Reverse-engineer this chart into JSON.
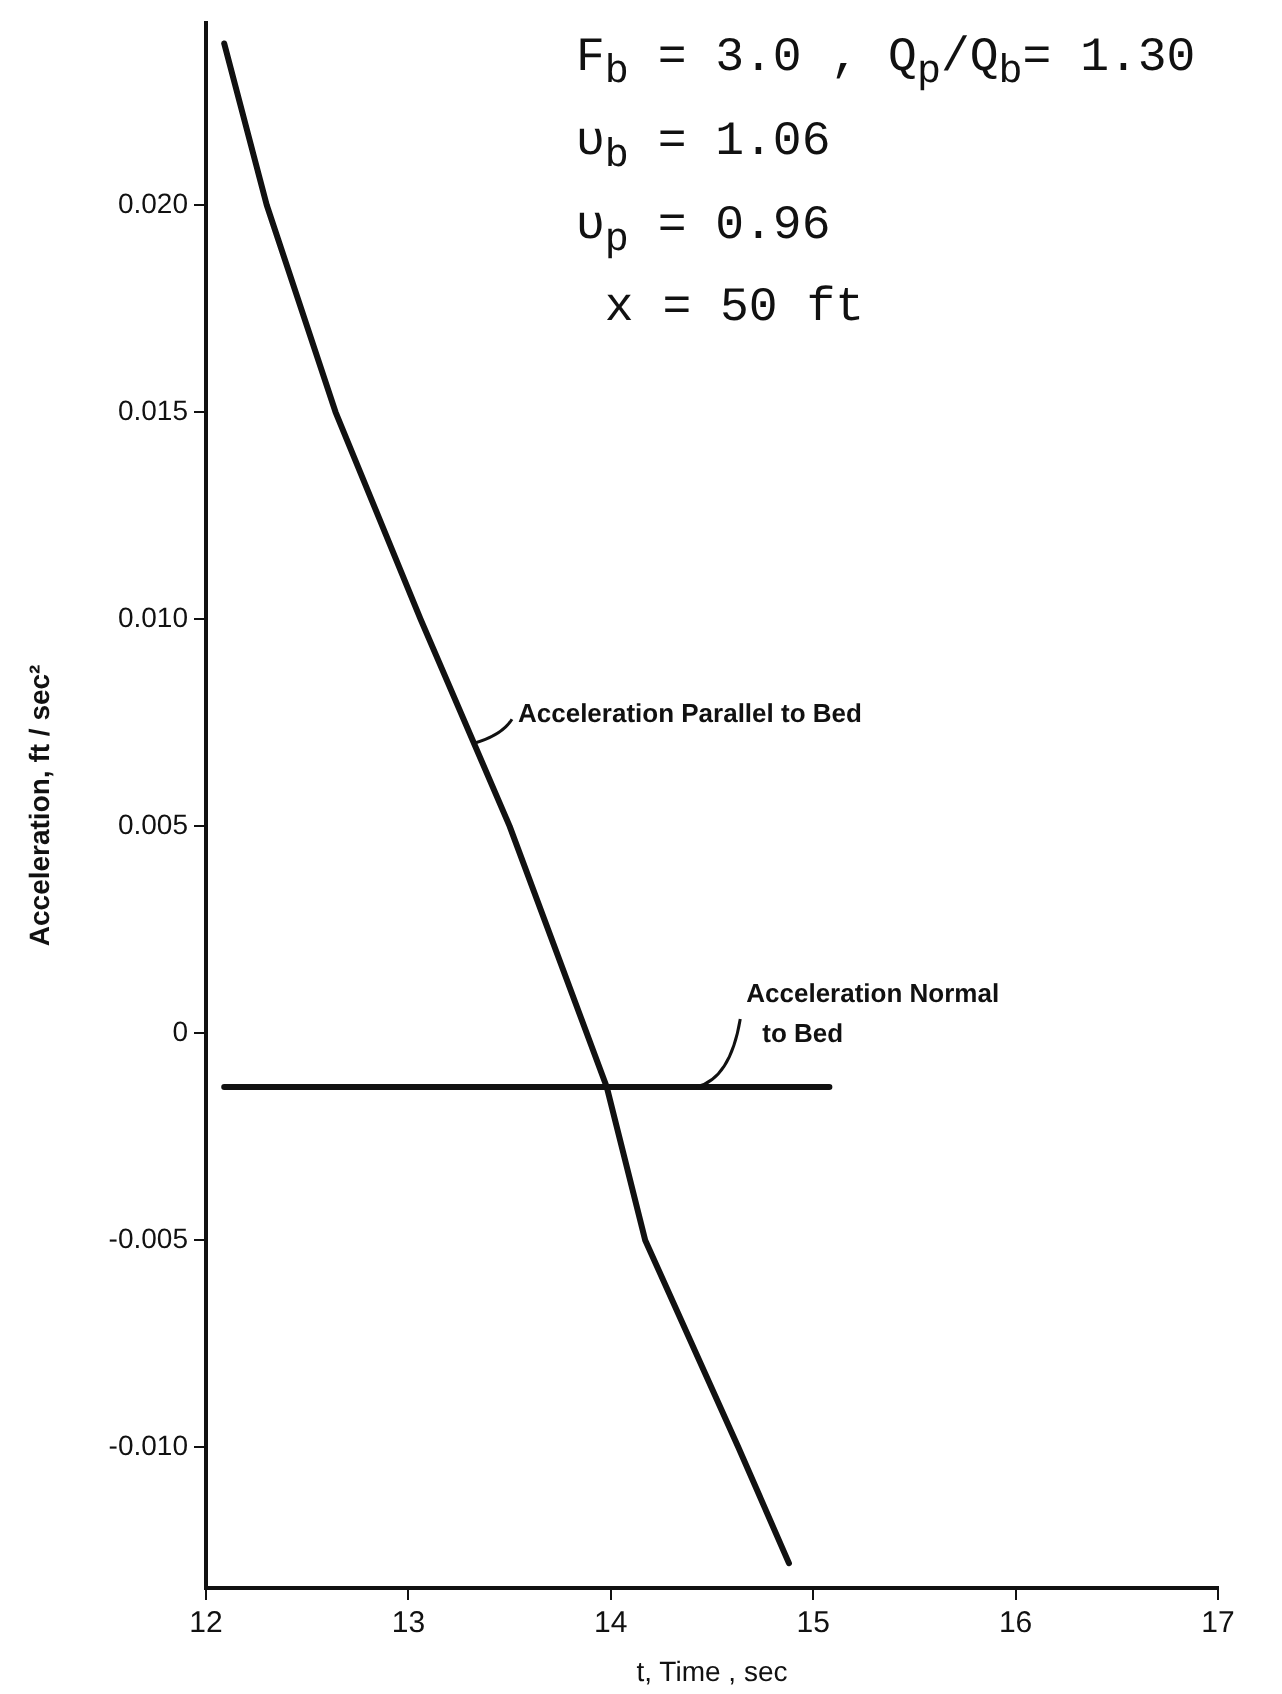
{
  "chart_data": {
    "type": "line",
    "xlabel": "t, Time , sec",
    "ylabel": "Acceleration, ft / sec²",
    "annotations": [
      "F$_{b}$ = 3.0 , Q$_{p}$/Q$_{b}$= 1.30",
      "υ$_{b}$ = 1.06",
      "υ$_{p}$ = 0.96",
      " x = 50 ft"
    ],
    "xlim": [
      12,
      17
    ],
    "xticks": [
      12,
      13,
      14,
      15,
      16,
      17
    ],
    "ylim": [
      -0.0134,
      0.0244
    ],
    "yticks": [
      {
        "value": -0.01,
        "label": "-0.010"
      },
      {
        "value": -0.005,
        "label": "-0.005"
      },
      0,
      {
        "value": 0.005,
        "label": "0.005"
      },
      {
        "value": 0.01,
        "label": "0.010"
      },
      {
        "value": 0.015,
        "label": "0.015"
      },
      {
        "value": 0.02,
        "label": "0.020"
      }
    ],
    "grid": false,
    "marker": "none",
    "line_style": "solid",
    "series": [
      {
        "name": "Acceleration Parallel to Bed",
        "color": "#111111",
        "x": [
          12.09,
          12.3,
          12.64,
          13.06,
          13.5,
          13.98,
          14.17,
          14.63,
          14.88
        ],
        "values": [
          0.0239,
          0.02,
          0.015,
          0.01,
          0.005,
          -0.0013,
          -0.005,
          -0.01,
          -0.0128
        ]
      },
      {
        "name": "Acceleration Normal to Bed",
        "color": "#111111",
        "x": [
          12.09,
          15.08
        ],
        "values": [
          -0.0013,
          -0.0013
        ]
      }
    ]
  }
}
